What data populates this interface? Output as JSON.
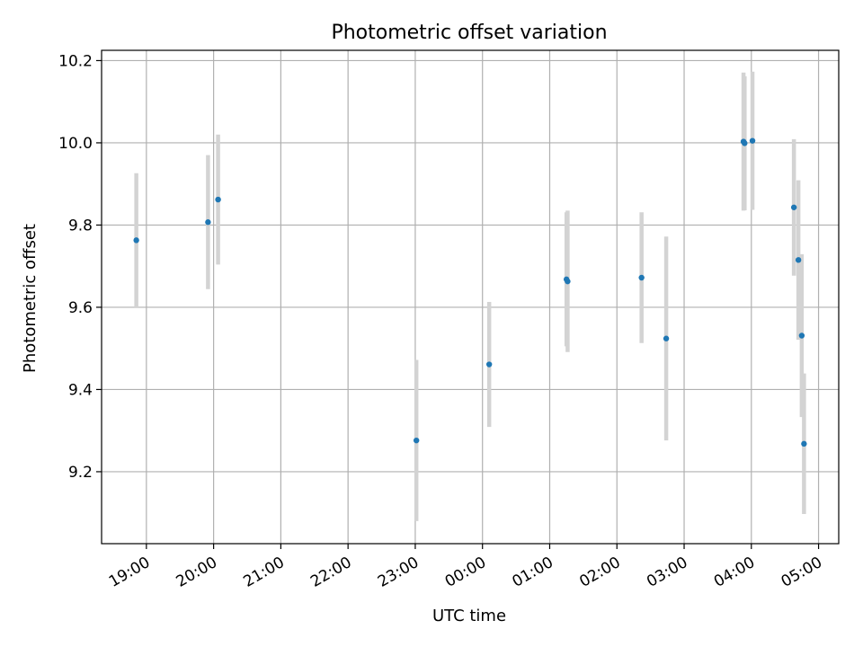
{
  "chart_data": {
    "type": "scatter",
    "title": "Photometric offset variation",
    "xlabel": "UTC time",
    "ylabel": "Photometric offset",
    "xlim": [
      "18:20",
      "05:18"
    ],
    "ylim": [
      9.025,
      10.225
    ],
    "x_ticks": [
      "19:00",
      "20:00",
      "21:00",
      "22:00",
      "23:00",
      "00:00",
      "01:00",
      "02:00",
      "03:00",
      "04:00",
      "05:00"
    ],
    "y_ticks": [
      9.2,
      9.4,
      9.6,
      9.8,
      10.0,
      10.2
    ],
    "grid": true,
    "marker_color": "#1f77b4",
    "errorbar_color": "#d3d3d3",
    "points": [
      {
        "time": "18:51",
        "value": 9.763,
        "err": 0.163
      },
      {
        "time": "19:55",
        "value": 9.807,
        "err": 0.163
      },
      {
        "time": "20:04",
        "value": 9.862,
        "err": 0.158
      },
      {
        "time": "23:01",
        "value": 9.276,
        "err": 0.196
      },
      {
        "time": "00:06",
        "value": 9.461,
        "err": 0.152
      },
      {
        "time": "01:15",
        "value": 9.668,
        "err": 0.163
      },
      {
        "time": "01:16",
        "value": 9.663,
        "err": 0.172
      },
      {
        "time": "02:22",
        "value": 9.672,
        "err": 0.159
      },
      {
        "time": "02:44",
        "value": 9.524,
        "err": 0.248
      },
      {
        "time": "03:53",
        "value": 10.003,
        "err": 0.168
      },
      {
        "time": "03:54",
        "value": 9.999,
        "err": 0.163
      },
      {
        "time": "04:01",
        "value": 10.005,
        "err": 0.168
      },
      {
        "time": "04:38",
        "value": 9.843,
        "err": 0.166
      },
      {
        "time": "04:42",
        "value": 9.715,
        "err": 0.194
      },
      {
        "time": "04:45",
        "value": 9.531,
        "err": 0.198
      },
      {
        "time": "04:47",
        "value": 9.268,
        "err": 0.171
      }
    ]
  }
}
